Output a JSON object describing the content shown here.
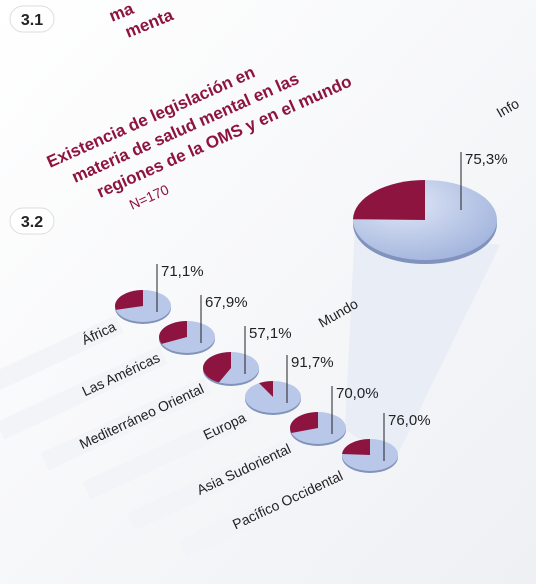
{
  "section_numbers": [
    "3.1",
    "3.2"
  ],
  "fragments": [
    "ma",
    "menta",
    "Info"
  ],
  "chart_data": {
    "type": "pie",
    "title": [
      "Existencia de legislación en",
      "materia de salud mental en las",
      "regiones de la OMS y en el mundo"
    ],
    "subtitle": "N=170",
    "categories": [
      "Mundo",
      "África",
      "Las Américas",
      "Mediterráneo Oriental",
      "Europa",
      "Asia Sudoriental",
      "Pacífico Occidental"
    ],
    "values": [
      75.3,
      71.1,
      67.9,
      57.1,
      91.7,
      70.0,
      76.0
    ],
    "value_labels": [
      "75,3%",
      "71,1%",
      "67,9%",
      "57,1%",
      "91,7%",
      "70,0%",
      "76,0%"
    ],
    "colors": [
      "#b9c7e8",
      "#8e1440"
    ]
  }
}
